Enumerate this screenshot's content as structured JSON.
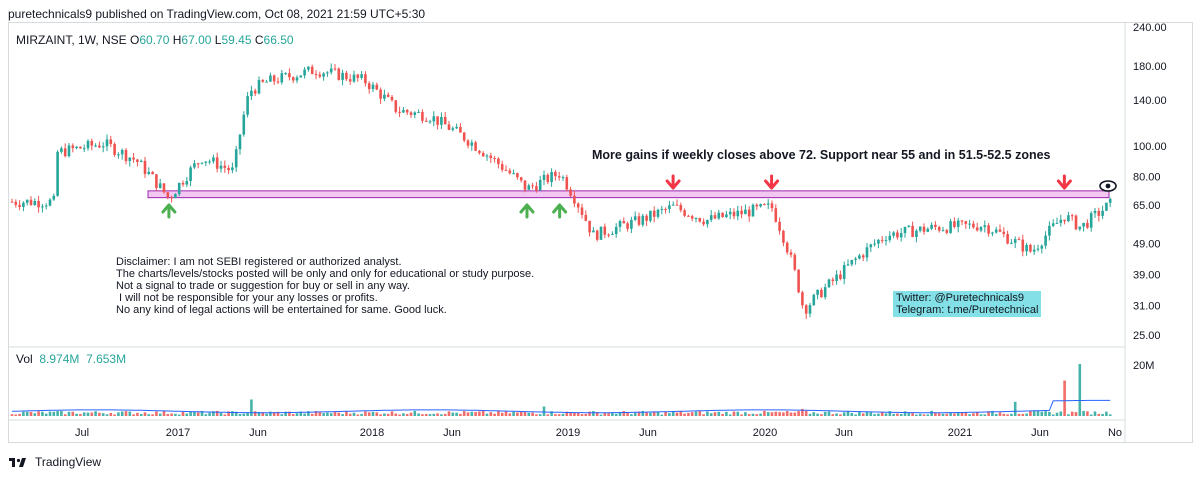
{
  "header": {
    "text": "puretechnicals9 published on TradingView.com, Oct 08, 2021 21:59 UTC+5:30"
  },
  "legend": {
    "symbol": "MIRZAINT, 1W, NSE",
    "o_label": "O",
    "o_value": "60.70",
    "h_label": "H",
    "h_value": "67.00",
    "l_label": "L",
    "l_value": "59.45",
    "c_label": "C",
    "c_value": "66.50"
  },
  "volume_legend": {
    "label": "Vol",
    "value1": "8.974M",
    "value2": "7.653M"
  },
  "annotation": "More gains if weekly closes above 72. Support near 55 and in 51.5-52.5 zones",
  "disclaimer": "Disclaimer: I am not SEBI registered or authorized analyst.\nThe charts/levels/stocks posted will be only and only for educational or study purpose.\nNot a signal to trade or suggestion for buy or sell in any way.\n I will not be responsible for your any losses or profits.\nNo any kind of legal actions will be entertained for same. Good luck.",
  "social": "Twitter: @Puretechnicals9\nTelegram: t.me/Puretechnical",
  "footer": {
    "brand": "TradingView"
  },
  "colors": {
    "up": "#26a69a",
    "down": "#ef5350",
    "zone_fill": "#f2c7f2",
    "zone_border": "#9c27b0",
    "vol_ma": "#2962ff",
    "green_arrow": "#4caf50",
    "red_arrow": "#f23645",
    "social_bg": "#82e0e6"
  },
  "chart_data": {
    "type": "candlestick",
    "y_scale": "log",
    "price_axis_ticks": [
      "240.00",
      "180.00",
      "140.00",
      "100.00",
      "80.00",
      "65.00",
      "49.00",
      "39.00",
      "31.00",
      "25.00"
    ],
    "volume_axis_ticks": [
      "20M"
    ],
    "x_axis_ticks": [
      "Jul",
      "2017",
      "Jun",
      "2018",
      "Jun",
      "2019",
      "Jun",
      "2020",
      "Jun",
      "2021",
      "Jun",
      "No"
    ],
    "zone": {
      "low": 68.5,
      "high": 72
    },
    "approx_weekly_close_path": [
      {
        "date": "2016-05",
        "close": 95
      },
      {
        "date": "2016-08",
        "close": 102
      },
      {
        "date": "2016-10",
        "close": 90
      },
      {
        "date": "2016-12",
        "close": 68
      },
      {
        "date": "2017-02",
        "close": 92
      },
      {
        "date": "2017-04",
        "close": 83
      },
      {
        "date": "2017-05",
        "close": 150
      },
      {
        "date": "2017-06",
        "close": 160
      },
      {
        "date": "2017-09",
        "close": 175
      },
      {
        "date": "2017-12",
        "close": 162
      },
      {
        "date": "2018-02",
        "close": 130
      },
      {
        "date": "2018-04",
        "close": 125
      },
      {
        "date": "2018-06",
        "close": 108
      },
      {
        "date": "2018-08",
        "close": 90
      },
      {
        "date": "2018-10",
        "close": 73
      },
      {
        "date": "2018-12",
        "close": 82
      },
      {
        "date": "2019-02",
        "close": 52
      },
      {
        "date": "2019-05",
        "close": 58
      },
      {
        "date": "2019-07",
        "close": 64
      },
      {
        "date": "2019-09",
        "close": 58
      },
      {
        "date": "2020-01",
        "close": 64
      },
      {
        "date": "2020-03",
        "close": 30
      },
      {
        "date": "2020-05",
        "close": 38
      },
      {
        "date": "2020-08",
        "close": 52
      },
      {
        "date": "2020-11",
        "close": 55
      },
      {
        "date": "2021-02",
        "close": 56
      },
      {
        "date": "2021-05",
        "close": 46
      },
      {
        "date": "2021-07",
        "close": 60
      },
      {
        "date": "2021-08",
        "close": 55
      },
      {
        "date": "2021-10",
        "close": 66.5
      }
    ],
    "volume_spikes_millions": [
      {
        "date": "2017-05",
        "value": 7
      },
      {
        "date": "2018-11",
        "value": 4
      },
      {
        "date": "2020-03",
        "value": 3
      },
      {
        "date": "2021-04",
        "value": 6
      },
      {
        "date": "2021-07",
        "value": 15
      },
      {
        "date": "2021-08",
        "value": 22
      },
      {
        "date": "2021-10",
        "value": 8.974
      }
    ],
    "markers": [
      {
        "type": "up-arrow",
        "date": "2016-12"
      },
      {
        "type": "up-arrow",
        "date": "2018-10"
      },
      {
        "type": "up-arrow",
        "date": "2018-12"
      },
      {
        "type": "down-arrow",
        "date": "2019-07"
      },
      {
        "type": "down-arrow",
        "date": "2020-01"
      },
      {
        "type": "down-arrow",
        "date": "2021-07"
      }
    ]
  }
}
